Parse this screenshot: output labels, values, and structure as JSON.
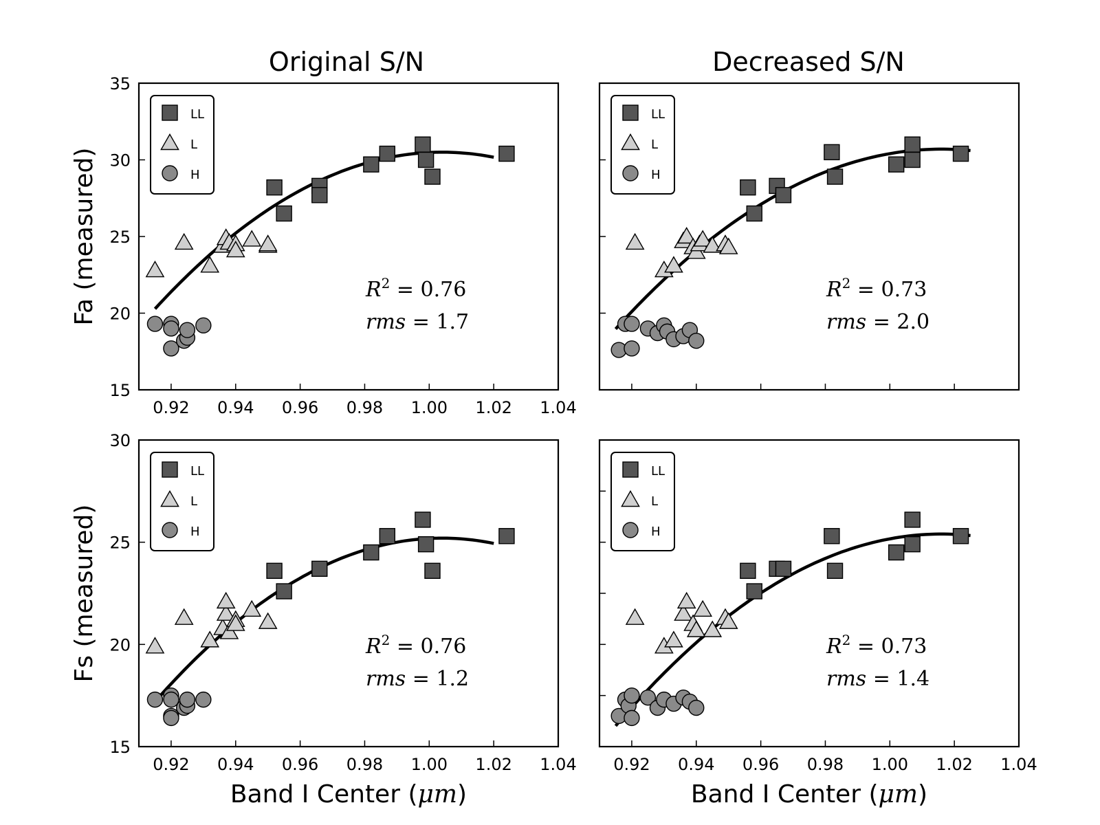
{
  "chart_data": {
    "type": "scatter",
    "column_titles": [
      "Original S/N",
      "Decreased S/N"
    ],
    "xlabel_prefix": "Band I Center (",
    "xlabel_unit": "μm",
    "xlabel_suffix": ")",
    "legend": [
      {
        "key": "LL",
        "label": "LL",
        "marker": "square",
        "color": "#555555"
      },
      {
        "key": "L",
        "label": "L",
        "marker": "triangle",
        "color": "#d0d0d0"
      },
      {
        "key": "H",
        "label": "H",
        "marker": "circle",
        "color": "#8a8a8a"
      }
    ],
    "panels": [
      {
        "id": "fa-original",
        "row": 0,
        "col": 0,
        "ylabel": "Fa (measured)",
        "xlim": [
          0.91,
          1.04
        ],
        "ylim": [
          15,
          35
        ],
        "xticks": [
          0.92,
          0.94,
          0.96,
          0.98,
          1.0,
          1.02,
          1.04
        ],
        "xtick_labels": [
          "0.92",
          "0.94",
          "0.96",
          "0.98",
          "1.00",
          "1.02",
          "1.04"
        ],
        "yticks": [
          15,
          20,
          25,
          30,
          35
        ],
        "ytick_labels": [
          "15",
          "20",
          "25",
          "30",
          "35"
        ],
        "r2": "0.76",
        "rms": "1.7",
        "fit": {
          "type": "quadratic",
          "vertex_x": 1.004,
          "vertex_y": 30.5,
          "a": -1290,
          "x_range": [
            0.915,
            1.02
          ]
        },
        "series": {
          "LL": [
            [
              0.952,
              28.2
            ],
            [
              0.955,
              26.5
            ],
            [
              0.966,
              28.3
            ],
            [
              0.966,
              27.7
            ],
            [
              0.982,
              29.7
            ],
            [
              0.987,
              30.4
            ],
            [
              0.998,
              31.0
            ],
            [
              0.999,
              30.0
            ],
            [
              1.001,
              28.9
            ],
            [
              1.024,
              30.4
            ]
          ],
          "L": [
            [
              0.915,
              22.8
            ],
            [
              0.924,
              24.6
            ],
            [
              0.932,
              23.1
            ],
            [
              0.936,
              24.4
            ],
            [
              0.937,
              24.9
            ],
            [
              0.938,
              24.6
            ],
            [
              0.94,
              24.5
            ],
            [
              0.94,
              24.1
            ],
            [
              0.945,
              24.8
            ],
            [
              0.95,
              24.4
            ],
            [
              0.95,
              24.5
            ]
          ],
          "H": [
            [
              0.915,
              19.3
            ],
            [
              0.92,
              19.3
            ],
            [
              0.92,
              19.0
            ],
            [
              0.92,
              17.7
            ],
            [
              0.924,
              18.2
            ],
            [
              0.925,
              18.4
            ],
            [
              0.925,
              18.9
            ],
            [
              0.93,
              19.2
            ]
          ]
        }
      },
      {
        "id": "fa-decreased",
        "row": 0,
        "col": 1,
        "ylabel": "",
        "xlim": [
          0.91,
          1.04
        ],
        "ylim": [
          15,
          35
        ],
        "xticks": [
          0.92,
          0.94,
          0.96,
          0.98,
          1.0,
          1.02,
          1.04
        ],
        "xtick_labels": [],
        "yticks": [
          15,
          20,
          25,
          30,
          35
        ],
        "ytick_labels": [],
        "r2": "0.73",
        "rms": "2.0",
        "fit": {
          "type": "quadratic",
          "vertex_x": 1.016,
          "vertex_y": 30.7,
          "a": -1150,
          "x_range": [
            0.915,
            1.025
          ]
        },
        "series": {
          "LL": [
            [
              0.956,
              28.2
            ],
            [
              0.958,
              26.5
            ],
            [
              0.965,
              28.3
            ],
            [
              0.967,
              27.7
            ],
            [
              0.982,
              30.5
            ],
            [
              0.983,
              28.9
            ],
            [
              1.002,
              29.7
            ],
            [
              1.007,
              31.0
            ],
            [
              1.007,
              30.0
            ],
            [
              1.022,
              30.4
            ]
          ],
          "L": [
            [
              0.921,
              24.6
            ],
            [
              0.93,
              22.8
            ],
            [
              0.933,
              23.1
            ],
            [
              0.936,
              24.7
            ],
            [
              0.937,
              25.0
            ],
            [
              0.939,
              24.3
            ],
            [
              0.94,
              24.0
            ],
            [
              0.941,
              24.5
            ],
            [
              0.942,
              24.8
            ],
            [
              0.945,
              24.4
            ],
            [
              0.949,
              24.5
            ],
            [
              0.95,
              24.3
            ]
          ],
          "H": [
            [
              0.916,
              17.6
            ],
            [
              0.918,
              19.3
            ],
            [
              0.92,
              19.3
            ],
            [
              0.92,
              17.7
            ],
            [
              0.925,
              19.0
            ],
            [
              0.928,
              18.7
            ],
            [
              0.93,
              19.2
            ],
            [
              0.931,
              18.8
            ],
            [
              0.933,
              18.3
            ],
            [
              0.936,
              18.5
            ],
            [
              0.938,
              18.9
            ],
            [
              0.94,
              18.2
            ]
          ]
        }
      },
      {
        "id": "fs-original",
        "row": 1,
        "col": 0,
        "ylabel": "Fs (measured)",
        "xlim": [
          0.91,
          1.04
        ],
        "ylim": [
          15,
          30
        ],
        "xticks": [
          0.92,
          0.94,
          0.96,
          0.98,
          1.0,
          1.02,
          1.04
        ],
        "xtick_labels": [
          "0.92",
          "0.94",
          "0.96",
          "0.98",
          "1.00",
          "1.02",
          "1.04"
        ],
        "yticks": [
          15,
          20,
          25,
          30
        ],
        "ytick_labels": [
          "15",
          "20",
          "25",
          "30"
        ],
        "r2": "0.76",
        "rms": "1.2",
        "fit": {
          "type": "quadratic",
          "vertex_x": 1.004,
          "vertex_y": 25.2,
          "a": -1010,
          "x_range": [
            0.915,
            1.02
          ]
        },
        "series": {
          "LL": [
            [
              0.952,
              23.6
            ],
            [
              0.955,
              22.6
            ],
            [
              0.966,
              23.7
            ],
            [
              0.982,
              24.5
            ],
            [
              0.987,
              25.3
            ],
            [
              0.998,
              26.1
            ],
            [
              0.999,
              24.9
            ],
            [
              1.001,
              23.6
            ],
            [
              1.024,
              25.3
            ]
          ],
          "L": [
            [
              0.915,
              19.9
            ],
            [
              0.924,
              21.3
            ],
            [
              0.932,
              20.2
            ],
            [
              0.936,
              20.8
            ],
            [
              0.937,
              21.5
            ],
            [
              0.937,
              22.1
            ],
            [
              0.938,
              20.6
            ],
            [
              0.94,
              21.2
            ],
            [
              0.94,
              21.0
            ],
            [
              0.945,
              21.7
            ],
            [
              0.95,
              21.1
            ]
          ],
          "H": [
            [
              0.915,
              17.3
            ],
            [
              0.92,
              17.5
            ],
            [
              0.92,
              17.3
            ],
            [
              0.92,
              16.5
            ],
            [
              0.92,
              16.4
            ],
            [
              0.924,
              16.9
            ],
            [
              0.925,
              17.0
            ],
            [
              0.925,
              17.3
            ],
            [
              0.93,
              17.3
            ]
          ]
        }
      },
      {
        "id": "fs-decreased",
        "row": 1,
        "col": 1,
        "ylabel": "",
        "xlim": [
          0.91,
          1.04
        ],
        "ylim": [
          15,
          30
        ],
        "xticks": [
          0.92,
          0.94,
          0.96,
          0.98,
          1.0,
          1.02,
          1.04
        ],
        "xtick_labels": [
          "0.92",
          "0.94",
          "0.96",
          "0.98",
          "1.00",
          "1.02",
          "1.04"
        ],
        "yticks": [
          17.5,
          20,
          22.5,
          25,
          27.5
        ],
        "ytick_labels": [],
        "r2": "0.73",
        "rms": "1.4",
        "fit": {
          "type": "quadratic",
          "vertex_x": 1.016,
          "vertex_y": 25.4,
          "a": -920,
          "x_range": [
            0.915,
            1.025
          ]
        },
        "series": {
          "LL": [
            [
              0.956,
              23.6
            ],
            [
              0.958,
              22.6
            ],
            [
              0.965,
              23.7
            ],
            [
              0.967,
              23.7
            ],
            [
              0.982,
              25.3
            ],
            [
              0.983,
              23.6
            ],
            [
              1.002,
              24.5
            ],
            [
              1.007,
              26.1
            ],
            [
              1.007,
              24.9
            ],
            [
              1.022,
              25.3
            ]
          ],
          "L": [
            [
              0.921,
              21.3
            ],
            [
              0.93,
              19.9
            ],
            [
              0.933,
              20.2
            ],
            [
              0.936,
              21.5
            ],
            [
              0.937,
              22.1
            ],
            [
              0.939,
              21.0
            ],
            [
              0.94,
              20.7
            ],
            [
              0.942,
              21.7
            ],
            [
              0.945,
              20.7
            ],
            [
              0.949,
              21.3
            ],
            [
              0.95,
              21.1
            ]
          ],
          "H": [
            [
              0.916,
              16.5
            ],
            [
              0.918,
              17.3
            ],
            [
              0.919,
              17.0
            ],
            [
              0.92,
              16.4
            ],
            [
              0.92,
              17.5
            ],
            [
              0.925,
              17.4
            ],
            [
              0.928,
              16.9
            ],
            [
              0.93,
              17.3
            ],
            [
              0.933,
              17.1
            ],
            [
              0.936,
              17.4
            ],
            [
              0.938,
              17.2
            ],
            [
              0.94,
              16.9
            ]
          ]
        }
      }
    ]
  }
}
